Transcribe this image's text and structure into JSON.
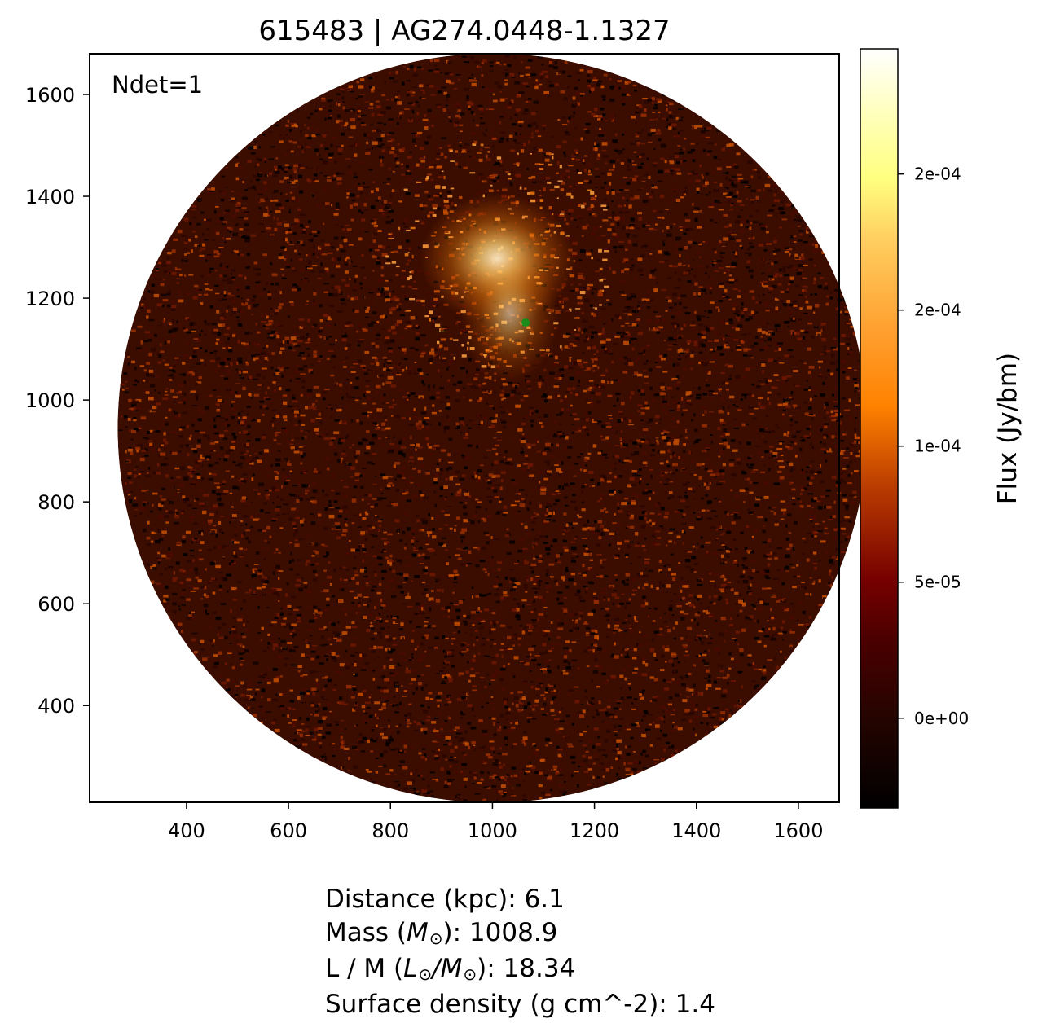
{
  "chart_data": {
    "type": "heatmap",
    "title": "615483 | AG274.0448-1.1327",
    "annotation": "Ndet=1",
    "x_ticks": [
      400,
      600,
      800,
      1000,
      1200,
      1400,
      1600
    ],
    "y_ticks": [
      400,
      600,
      800,
      1000,
      1200,
      1400,
      1600
    ],
    "xlim": [
      210,
      1680
    ],
    "ylim": [
      210,
      1680
    ],
    "map_center": [
      1000,
      945
    ],
    "map_radius": 735,
    "bright_region_center": [
      1010,
      1290
    ],
    "detections": [
      {
        "x": 1065,
        "y": 1152,
        "color": "#1a8c1a"
      }
    ],
    "colormap": "afmhot",
    "colorbar": {
      "label": "Flux (Jy/bm)",
      "vmin": -3.3e-05,
      "vmax": 0.000246,
      "ticks": [
        {
          "value": 0.0,
          "label": "0e+00"
        },
        {
          "value": 5e-05,
          "label": "5e-05"
        },
        {
          "value": 0.0001,
          "label": "1e-04"
        },
        {
          "value": 0.00015,
          "label": "2e-04"
        },
        {
          "value": 0.0002,
          "label": "2e-04"
        }
      ]
    }
  },
  "info": {
    "distance_label": "Distance (kpc):",
    "distance_value": "6.1",
    "mass_label": "Mass (",
    "mass_symbol": "M",
    "mass_sub": "⊙",
    "mass_value": "): 1008.9",
    "lm_label": "L / M (",
    "lm_num_symbol": "L",
    "lm_num_sub": "⊙",
    "lm_slash": "/",
    "lm_den_symbol": "M",
    "lm_den_sub": "⊙",
    "lm_value": "): 18.34",
    "sd_label": "Surface density (g cm^-2):",
    "sd_value": "1.4"
  }
}
